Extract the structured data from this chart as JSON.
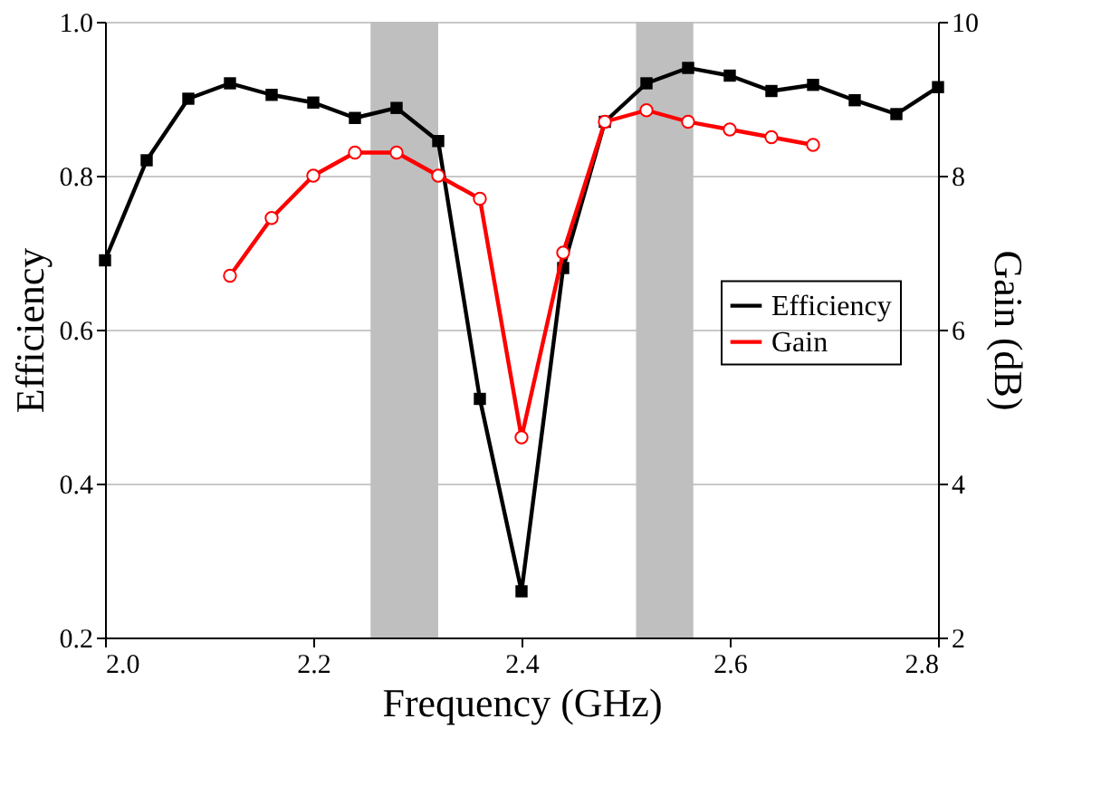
{
  "chart_data": {
    "type": "line",
    "xlabel": "Frequency (GHz)",
    "ylabel": "Efficiency",
    "y2label": "Gain (dB)",
    "x": [
      2.0,
      2.04,
      2.08,
      2.12,
      2.16,
      2.2,
      2.24,
      2.28,
      2.32,
      2.36,
      2.4,
      2.44,
      2.48,
      2.52,
      2.56,
      2.6,
      2.64,
      2.68,
      2.72,
      2.76,
      2.8
    ],
    "series": [
      {
        "name": "Efficiency",
        "color": "#000000",
        "marker": "square",
        "values": [
          0.69,
          0.82,
          0.9,
          0.92,
          0.905,
          0.895,
          0.875,
          0.888,
          0.845,
          0.51,
          0.26,
          0.68,
          0.87,
          0.92,
          0.94,
          0.93,
          0.91,
          0.918,
          0.898,
          0.88,
          0.915
        ]
      },
      {
        "name": "Gain",
        "color": "#ff0000",
        "marker": "circle",
        "axis": "y2",
        "x": [
          2.12,
          2.16,
          2.2,
          2.24,
          2.28,
          2.32,
          2.36,
          2.4,
          2.44,
          2.48,
          2.52,
          2.56,
          2.6,
          2.64,
          2.68
        ],
        "values": [
          6.7,
          7.45,
          8.0,
          8.3,
          8.3,
          8.0,
          7.7,
          4.6,
          7.0,
          8.7,
          8.85,
          8.7,
          8.6,
          8.5,
          8.4
        ]
      }
    ],
    "xlim": [
      2.0,
      2.8
    ],
    "xticks": [
      {
        "value": 2.0,
        "label": "2.0"
      },
      2.2,
      2.4,
      2.6,
      2.8
    ],
    "ylim": [
      0.2,
      1.0
    ],
    "yticks": [
      0.2,
      0.4,
      0.6,
      0.8,
      {
        "value": 1.0,
        "label": "1.0"
      }
    ],
    "y2lim": [
      2,
      10
    ],
    "y2ticks": [
      2,
      4,
      6,
      8,
      10
    ],
    "bands": [
      {
        "axis": "x",
        "from": 2.255,
        "to": 2.32,
        "color": "#bfbfbf"
      },
      {
        "axis": "x",
        "from": 2.51,
        "to": 2.565,
        "color": "#bfbfbf"
      }
    ],
    "grid": "y",
    "legend": "right"
  }
}
